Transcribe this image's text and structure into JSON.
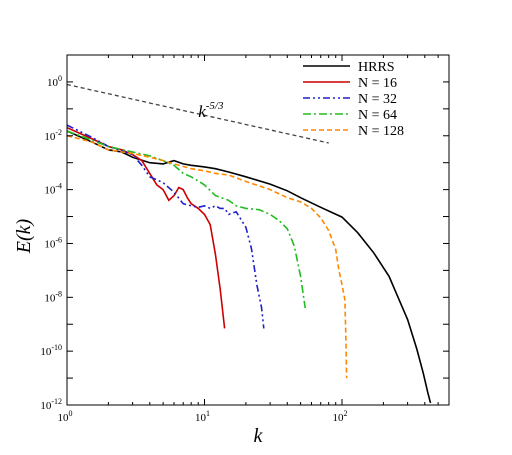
{
  "chart_data": {
    "type": "line",
    "xlabel": "k",
    "ylabel": "E(k)",
    "xscale": "log",
    "yscale": "log",
    "xlim": [
      1,
      600
    ],
    "ylim": [
      1e-12,
      10
    ],
    "x_ticks": [
      {
        "value": 1,
        "base": "10",
        "exp": "0"
      },
      {
        "value": 10,
        "base": "10",
        "exp": "1"
      },
      {
        "value": 100,
        "base": "10",
        "exp": "2"
      }
    ],
    "y_ticks": [
      {
        "value": 1,
        "base": "10",
        "exp": "0"
      },
      {
        "value": 0.01,
        "base": "10",
        "exp": "-2"
      },
      {
        "value": 0.0001,
        "base": "10",
        "exp": "-4"
      },
      {
        "value": 1e-06,
        "base": "10",
        "exp": "-6"
      },
      {
        "value": 1e-08,
        "base": "10",
        "exp": "-8"
      },
      {
        "value": 1e-10,
        "base": "10",
        "exp": "-10"
      },
      {
        "value": 1e-12,
        "base": "10",
        "exp": "-12"
      }
    ],
    "legend_position": "top-right",
    "annotation": {
      "base": "k",
      "exp": "-5/3",
      "x": 9,
      "y": 0.05
    },
    "series": [
      {
        "name": "HRRS",
        "color": "#000000",
        "dash": "solid",
        "width": 1.6,
        "points": [
          [
            1,
            0.015
          ],
          [
            1.5,
            0.006
          ],
          [
            2,
            0.003
          ],
          [
            2.5,
            0.0025
          ],
          [
            3,
            0.0016
          ],
          [
            4,
            0.001
          ],
          [
            5,
            0.0009
          ],
          [
            6,
            0.0012
          ],
          [
            7,
            0.0009
          ],
          [
            8,
            0.0008
          ],
          [
            10,
            0.0007
          ],
          [
            12,
            0.0006
          ],
          [
            15,
            0.00045
          ],
          [
            20,
            0.0003
          ],
          [
            30,
            0.00016
          ],
          [
            40,
            9e-05
          ],
          [
            50,
            5e-05
          ],
          [
            70,
            2.2e-05
          ],
          [
            100,
            9.5e-06
          ],
          [
            130,
            2.5e-06
          ],
          [
            170,
            4.5e-07
          ],
          [
            220,
            6e-08
          ],
          [
            250,
            1.3e-08
          ],
          [
            300,
            1.5e-09
          ],
          [
            350,
            1.2e-10
          ],
          [
            390,
            1.5e-11
          ],
          [
            420,
            3e-12
          ],
          [
            440,
            1.2e-12
          ]
        ]
      },
      {
        "name": "N = 16",
        "color": "#cc0000",
        "dash": "solid",
        "width": 1.6,
        "points": [
          [
            1,
            0.02
          ],
          [
            1.5,
            0.008
          ],
          [
            2,
            0.004
          ],
          [
            2.5,
            0.003
          ],
          [
            3,
            0.002
          ],
          [
            3.5,
            0.0012
          ],
          [
            4,
            0.0004
          ],
          [
            4.5,
            0.00015
          ],
          [
            5,
            0.0001
          ],
          [
            5.5,
            4e-05
          ],
          [
            6,
            6e-05
          ],
          [
            6.5,
            0.00012
          ],
          [
            7,
            0.0001
          ],
          [
            7.5,
            5e-05
          ],
          [
            8,
            3e-05
          ],
          [
            9,
            2e-05
          ],
          [
            10,
            1.2e-05
          ],
          [
            11,
            5e-06
          ],
          [
            12,
            4e-07
          ],
          [
            13,
            2e-08
          ],
          [
            14,
            7e-10
          ]
        ]
      },
      {
        "name": "N = 32",
        "color": "#1f1fcc",
        "dash": "7,3,2,3,2,3",
        "width": 1.6,
        "points": [
          [
            1,
            0.025
          ],
          [
            1.5,
            0.009
          ],
          [
            2,
            0.004
          ],
          [
            2.5,
            0.0028
          ],
          [
            3,
            0.002
          ],
          [
            3.5,
            0.0008
          ],
          [
            4,
            0.0003
          ],
          [
            5,
            0.00018
          ],
          [
            6,
            8e-05
          ],
          [
            7,
            3e-05
          ],
          [
            8,
            2.5e-05
          ],
          [
            9,
            2.2e-05
          ],
          [
            10,
            2.5e-05
          ],
          [
            11,
            2e-05
          ],
          [
            12,
            2.5e-05
          ],
          [
            13,
            2e-05
          ],
          [
            14,
            2e-05
          ],
          [
            15,
            1.2e-05
          ],
          [
            17,
            1.5e-05
          ],
          [
            20,
            4e-06
          ],
          [
            22,
            6e-07
          ],
          [
            24,
            3e-08
          ],
          [
            26,
            4e-09
          ],
          [
            27,
            7e-10
          ]
        ]
      },
      {
        "name": "N = 64",
        "color": "#22bb22",
        "dash": "8,3,2,3",
        "width": 1.6,
        "points": [
          [
            1,
            0.015
          ],
          [
            1.5,
            0.007
          ],
          [
            2,
            0.004
          ],
          [
            3,
            0.0025
          ],
          [
            4,
            0.0018
          ],
          [
            5,
            0.0012
          ],
          [
            6,
            0.0008
          ],
          [
            7,
            0.0004
          ],
          [
            8,
            0.0003
          ],
          [
            10,
            0.00015
          ],
          [
            12,
            6e-05
          ],
          [
            15,
            4e-05
          ],
          [
            17,
            2.5e-05
          ],
          [
            20,
            2e-05
          ],
          [
            25,
            1.8e-05
          ],
          [
            30,
            1.2e-05
          ],
          [
            35,
            7e-06
          ],
          [
            40,
            3.5e-06
          ],
          [
            45,
            8e-07
          ],
          [
            50,
            6e-08
          ],
          [
            54,
            4e-09
          ]
        ]
      },
      {
        "name": "N = 128",
        "color": "#ff8800",
        "dash": "5,3",
        "width": 1.6,
        "points": [
          [
            1,
            0.01
          ],
          [
            1.5,
            0.006
          ],
          [
            2,
            0.003
          ],
          [
            3,
            0.0022
          ],
          [
            4,
            0.0016
          ],
          [
            5,
            0.0012
          ],
          [
            6,
            0.0009
          ],
          [
            8,
            0.0006
          ],
          [
            10,
            0.0005
          ],
          [
            12,
            0.0004
          ],
          [
            15,
            0.00035
          ],
          [
            20,
            0.0002
          ],
          [
            30,
            0.0001
          ],
          [
            40,
            5e-05
          ],
          [
            50,
            3.5e-05
          ],
          [
            60,
            2e-05
          ],
          [
            70,
            9e-06
          ],
          [
            80,
            3e-06
          ],
          [
            90,
            6e-07
          ],
          [
            95,
            1e-07
          ],
          [
            100,
            3e-08
          ],
          [
            105,
            8e-09
          ],
          [
            107,
            2e-10
          ],
          [
            108,
            1e-11
          ]
        ]
      }
    ],
    "reference_line": {
      "dash": "4,3",
      "color": "#444444",
      "points": [
        [
          1,
          0.8
        ],
        [
          80,
          0.0054
        ]
      ]
    }
  }
}
